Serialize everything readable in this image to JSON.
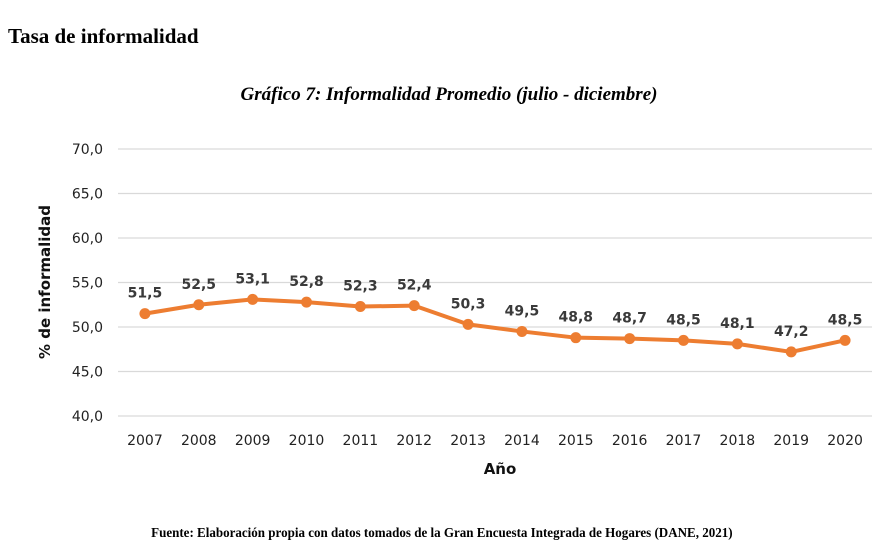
{
  "page": {
    "section_title": "Tasa de informalidad",
    "source_note": "Fuente: Elaboración propia con datos tomados de la Gran Encuesta Integrada de Hogares (DANE, 2021)"
  },
  "chart_data": {
    "type": "line",
    "title": "Gráfico 7: Informalidad Promedio (julio - diciembre)",
    "xlabel": "Año",
    "ylabel": "% de informalidad",
    "categories": [
      "2007",
      "2008",
      "2009",
      "2010",
      "2011",
      "2012",
      "2013",
      "2014",
      "2015",
      "2016",
      "2017",
      "2018",
      "2019",
      "2020"
    ],
    "series": [
      {
        "name": "Informalidad",
        "color": "#ED7D31",
        "values": [
          51.5,
          52.5,
          53.1,
          52.8,
          52.3,
          52.4,
          50.3,
          49.5,
          48.8,
          48.7,
          48.5,
          48.1,
          47.2,
          48.5
        ],
        "value_labels": [
          "51,5",
          "52,5",
          "53,1",
          "52,8",
          "52,3",
          "52,4",
          "50,3",
          "49,5",
          "48,8",
          "48,7",
          "48,5",
          "48,1",
          "47,2",
          "48,5"
        ]
      }
    ],
    "ylim": [
      40,
      70
    ],
    "yticks": [
      40,
      45,
      50,
      55,
      60,
      65,
      70
    ],
    "ytick_labels": [
      "40,0",
      "45,0",
      "50,0",
      "55,0",
      "60,0",
      "65,0",
      "70,0"
    ],
    "grid": true,
    "grid_color": "#D9D9D9",
    "legend": "none"
  }
}
